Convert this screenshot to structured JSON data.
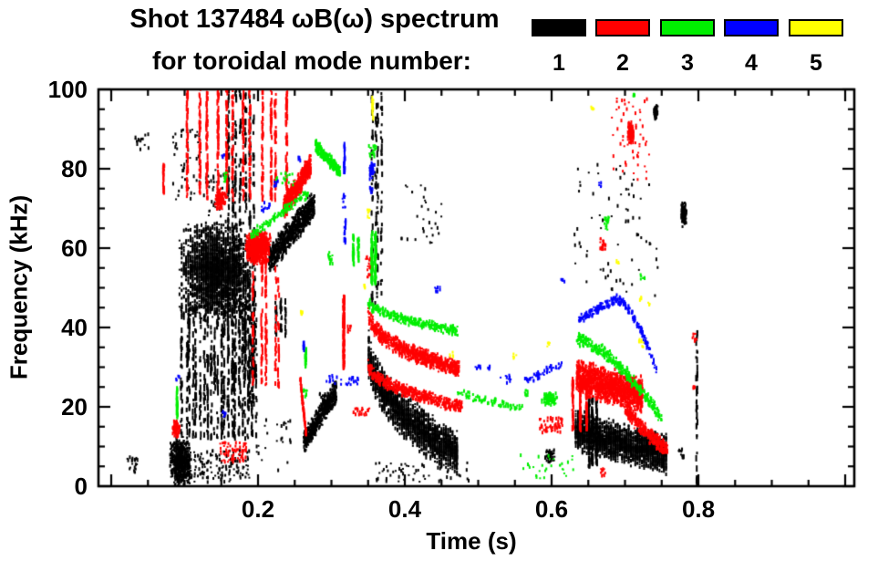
{
  "chart_data": {
    "type": "scatter",
    "title_line1": "Shot 137484 ωB(ω) spectrum",
    "title_line2": "for toroidal mode number:",
    "xlabel": "Time (s)",
    "ylabel": "Frequency (kHz)",
    "x_range": [
      -0.0174,
      1.0124
    ],
    "y_range": [
      0,
      100
    ],
    "x_major_ticks": [
      0,
      0.2,
      0.4,
      0.6,
      0.8,
      1.0
    ],
    "x_labeled_ticks": [
      {
        "t": 0.2,
        "label": "0.2"
      },
      {
        "t": 0.4,
        "label": "0.4"
      },
      {
        "t": 0.6,
        "label": "0.6"
      },
      {
        "t": 0.8,
        "label": "0.8"
      }
    ],
    "x_minor_step": 0.05,
    "y_major_ticks": [
      0,
      20,
      40,
      60,
      80,
      100
    ],
    "y_tick_labels": [
      "0",
      "20",
      "40",
      "60",
      "80",
      "100"
    ],
    "y_minor_step": 5,
    "legend": {
      "entries": [
        {
          "label": "1",
          "color": "#000000"
        },
        {
          "label": "2",
          "color": "#ff0000"
        },
        {
          "label": "3",
          "color": "#00ee00"
        },
        {
          "label": "4",
          "color": "#0000ff"
        },
        {
          "label": "5",
          "color": "#ffff00"
        }
      ]
    },
    "clusters": [
      {
        "m": 1,
        "s": "blob",
        "t": 0.142,
        "f": 54,
        "rt": 0.052,
        "rf": 13,
        "n": 2400,
        "q": 0.003
      },
      {
        "m": 1,
        "s": "vs",
        "t0": 0.095,
        "t1": 0.2,
        "f0": 12,
        "f1": 46,
        "k": 22,
        "n": 700
      },
      {
        "m": 1,
        "s": "vs",
        "t0": 0.155,
        "t1": 0.196,
        "f0": 20,
        "f1": 100,
        "k": 7,
        "n": 420
      },
      {
        "m": 1,
        "s": "sc",
        "t0": 0.083,
        "t1": 0.122,
        "f0": 70,
        "f1": 90,
        "n": 50
      },
      {
        "m": 1,
        "s": "sc",
        "t0": 0.125,
        "t1": 0.155,
        "f0": 68,
        "f1": 80,
        "n": 30
      },
      {
        "m": 1,
        "s": "sc",
        "t0": 0.033,
        "t1": 0.052,
        "f0": 84,
        "f1": 89,
        "n": 14
      },
      {
        "m": 1,
        "s": "band",
        "t0": 0.215,
        "t1": 0.277,
        "f0": 57,
        "f1": 71,
        "w": 4,
        "n": 750
      },
      {
        "m": 1,
        "s": "band",
        "t0": 0.262,
        "t1": 0.307,
        "f0": 11,
        "f1": 24,
        "w": 3.2,
        "n": 480
      },
      {
        "m": 1,
        "s": "blob",
        "t": 0.095,
        "f": 6,
        "rt": 0.016,
        "rf": 6.5,
        "n": 550
      },
      {
        "m": 1,
        "s": "sc",
        "t0": 0.112,
        "t1": 0.19,
        "f0": 1,
        "f1": 9,
        "n": 130
      },
      {
        "m": 1,
        "s": "sc",
        "t0": 0.02,
        "t1": 0.036,
        "f0": 3,
        "f1": 7.5,
        "n": 22
      },
      {
        "m": 1,
        "s": "sc",
        "t0": 0.195,
        "t1": 0.245,
        "f0": 3,
        "f1": 17,
        "n": 25
      },
      {
        "m": 1,
        "s": "vs",
        "t0": 0.178,
        "t1": 0.196,
        "f0": 25,
        "f1": 55,
        "k": 3,
        "n": 80
      },
      {
        "m": 1,
        "s": "vs",
        "t0": 0.222,
        "t1": 0.238,
        "f0": 38,
        "f1": 47,
        "k": 3,
        "n": 40
      },
      {
        "m": 1,
        "s": "sc",
        "t0": 0.284,
        "t1": 0.292,
        "f0": 21,
        "f1": 23.5,
        "n": 12
      },
      {
        "m": 1,
        "s": "band",
        "t0": 0.35,
        "t1": 0.472,
        "f0": 37,
        "f1": 8,
        "w": 6,
        "p": 0.45,
        "n": 2000,
        "q": 0.003
      },
      {
        "m": 1,
        "s": "sc",
        "t0": 0.36,
        "t1": 0.49,
        "f0": 1,
        "f1": 6,
        "n": 60
      },
      {
        "m": 1,
        "s": "vs",
        "t0": 0.352,
        "t1": 0.372,
        "f0": 46,
        "f1": 100,
        "k": 4,
        "n": 130
      },
      {
        "m": 1,
        "s": "sc",
        "t0": 0.395,
        "t1": 0.45,
        "f0": 60,
        "f1": 76,
        "n": 30
      },
      {
        "m": 1,
        "s": "blob",
        "t": 0.597,
        "f": 7.5,
        "rt": 0.008,
        "rf": 1.8,
        "n": 45
      },
      {
        "m": 1,
        "s": "band",
        "t0": 0.632,
        "t1": 0.756,
        "f0": 14,
        "f1": 8,
        "w": 5.5,
        "n": 2100,
        "q": 0.003
      },
      {
        "m": 1,
        "s": "vs",
        "t0": 0.648,
        "t1": 0.662,
        "f0": 5,
        "f1": 22,
        "k": 3,
        "n": 160
      },
      {
        "m": 1,
        "s": "sc",
        "t0": 0.63,
        "t1": 0.75,
        "f0": 48,
        "f1": 81,
        "n": 70
      },
      {
        "m": 1,
        "s": "blob",
        "t": 0.742,
        "f": 94,
        "rt": 0.003,
        "rf": 2.2,
        "n": 55
      },
      {
        "m": 1,
        "s": "blob",
        "t": 0.78,
        "f": 68.5,
        "rt": 0.004,
        "rf": 3.5,
        "n": 90
      },
      {
        "m": 1,
        "s": "sc",
        "t0": 0.773,
        "t1": 0.78,
        "f0": 7,
        "f1": 9.5,
        "n": 12
      },
      {
        "m": 1,
        "s": "vs",
        "t0": 0.795,
        "t1": 0.802,
        "f0": 1,
        "f1": 40,
        "k": 1,
        "n": 40
      },
      {
        "m": 2,
        "s": "vs",
        "t0": 0.1,
        "t1": 0.245,
        "f0": 72,
        "f1": 100,
        "k": 12,
        "n": 650
      },
      {
        "m": 2,
        "s": "vs",
        "t0": 0.07,
        "t1": 0.075,
        "f0": 74,
        "f1": 81,
        "k": 1,
        "n": 20
      },
      {
        "m": 2,
        "s": "blob",
        "t": 0.148,
        "f": 72,
        "rt": 0.008,
        "rf": 3,
        "n": 120
      },
      {
        "m": 2,
        "s": "blob",
        "t": 0.2,
        "f": 60,
        "rt": 0.018,
        "rf": 4.5,
        "n": 650
      },
      {
        "m": 2,
        "s": "band",
        "t0": 0.235,
        "t1": 0.272,
        "f0": 70,
        "f1": 81,
        "w": 3.2,
        "n": 600
      },
      {
        "m": 2,
        "s": "vs",
        "t0": 0.19,
        "t1": 0.215,
        "f0": 25,
        "f1": 58,
        "k": 3,
        "n": 130
      },
      {
        "m": 2,
        "s": "vs",
        "t0": 0.222,
        "t1": 0.232,
        "f0": 25,
        "f1": 55,
        "k": 2,
        "n": 50
      },
      {
        "m": 2,
        "s": "band",
        "t0": 0.2575,
        "t1": 0.2655,
        "f0": 27,
        "f1": 13,
        "w": 1.5,
        "n": 130
      },
      {
        "m": 2,
        "s": "blob",
        "t": 0.0885,
        "f": 14.5,
        "rt": 0.0055,
        "rf": 2.2,
        "n": 90
      },
      {
        "m": 2,
        "s": "sc",
        "t0": 0.148,
        "t1": 0.185,
        "f0": 6,
        "f1": 11,
        "n": 70
      },
      {
        "m": 2,
        "s": "vs",
        "t0": 0.3135,
        "t1": 0.3195,
        "f0": 30,
        "f1": 48,
        "k": 1,
        "n": 130
      },
      {
        "m": 2,
        "s": "sc",
        "t0": 0.322,
        "t1": 0.327,
        "f0": 38.5,
        "f1": 40.5,
        "n": 10
      },
      {
        "m": 2,
        "s": "sc",
        "t0": 0.347,
        "t1": 0.356,
        "f0": 52,
        "f1": 58,
        "n": 28
      },
      {
        "m": 2,
        "s": "band",
        "t0": 0.35,
        "t1": 0.474,
        "f0": 45,
        "f1": 29.5,
        "w": 2.4,
        "p": 0.42,
        "n": 800
      },
      {
        "m": 2,
        "s": "band",
        "t0": 0.35,
        "t1": 0.478,
        "f0": 31,
        "f1": 20,
        "w": 1.8,
        "p": 0.5,
        "n": 500
      },
      {
        "m": 2,
        "s": "sc",
        "t0": 0.33,
        "t1": 0.352,
        "f0": 17.8,
        "f1": 19.8,
        "n": 22
      },
      {
        "m": 2,
        "s": "sc",
        "t0": 0.583,
        "t1": 0.615,
        "f0": 13.5,
        "f1": 17.5,
        "n": 60
      },
      {
        "m": 2,
        "s": "band",
        "t0": 0.634,
        "t1": 0.724,
        "f0": 27.5,
        "f1": 23,
        "w": 4.8,
        "n": 1500
      },
      {
        "m": 2,
        "s": "band",
        "t0": 0.7,
        "t1": 0.758,
        "f0": 20,
        "f1": 9,
        "w": 2.2,
        "p": 0.8,
        "n": 320
      },
      {
        "m": 2,
        "s": "vs",
        "t0": 0.625,
        "t1": 0.649,
        "f0": 14,
        "f1": 27,
        "k": 3,
        "n": 130
      },
      {
        "m": 2,
        "s": "blob",
        "t": 0.708,
        "f": 89,
        "rt": 0.005,
        "rf": 2.8,
        "n": 130
      },
      {
        "m": 2,
        "s": "sc",
        "t0": 0.682,
        "t1": 0.733,
        "f0": 76,
        "f1": 98,
        "n": 55
      },
      {
        "m": 2,
        "s": "sc",
        "t0": 0.666,
        "t1": 0.674,
        "f0": 59.5,
        "f1": 62.5,
        "n": 22
      },
      {
        "m": 2,
        "s": "sc",
        "t0": 0.667,
        "t1": 0.673,
        "f0": 2.5,
        "f1": 4.5,
        "n": 12
      },
      {
        "m": 2,
        "s": "sc",
        "t0": 0.792,
        "t1": 0.798,
        "f0": 36.5,
        "f1": 38.5,
        "n": 9
      },
      {
        "m": 2,
        "s": "sc",
        "t0": 0.793,
        "t1": 0.797,
        "f0": 24.5,
        "f1": 25.5,
        "n": 5
      },
      {
        "m": 3,
        "s": "band",
        "t0": 0.278,
        "t1": 0.312,
        "f0": 86,
        "f1": 79,
        "w": 1.8,
        "n": 260
      },
      {
        "m": 3,
        "s": "band",
        "t0": 0.19,
        "t1": 0.268,
        "f0": 63,
        "f1": 74,
        "w": 1.4,
        "n": 130
      },
      {
        "m": 3,
        "s": "sc",
        "t0": 0.222,
        "t1": 0.252,
        "f0": 75.5,
        "f1": 79,
        "n": 18
      },
      {
        "m": 3,
        "s": "sc",
        "t0": 0.153,
        "t1": 0.157,
        "f0": 76.5,
        "f1": 79,
        "n": 8
      },
      {
        "m": 3,
        "s": "vs",
        "t0": 0.086,
        "t1": 0.091,
        "f0": 17,
        "f1": 25,
        "k": 1,
        "n": 30
      },
      {
        "m": 3,
        "s": "sc",
        "t0": 0.295,
        "t1": 0.302,
        "f0": 56,
        "f1": 59,
        "n": 15
      },
      {
        "m": 3,
        "s": "vs",
        "t0": 0.329,
        "t1": 0.339,
        "f0": 56,
        "f1": 63,
        "k": 2,
        "n": 45
      },
      {
        "m": 3,
        "s": "vs",
        "t0": 0.352,
        "t1": 0.362,
        "f0": 51,
        "f1": 64,
        "k": 2,
        "n": 110
      },
      {
        "m": 3,
        "s": "sc",
        "t0": 0.351,
        "t1": 0.361,
        "f0": 83,
        "f1": 86,
        "n": 20
      },
      {
        "m": 3,
        "s": "vs",
        "t0": 0.262,
        "t1": 0.266,
        "f0": 30,
        "f1": 34.5,
        "k": 1,
        "n": 20
      },
      {
        "m": 3,
        "s": "sc",
        "t0": 0.262,
        "t1": 0.267,
        "f0": 22.5,
        "f1": 24.5,
        "n": 8
      },
      {
        "m": 3,
        "s": "band",
        "t0": 0.35,
        "t1": 0.472,
        "f0": 46.5,
        "f1": 39,
        "w": 1.4,
        "p": 0.6,
        "n": 300
      },
      {
        "m": 3,
        "s": "band",
        "t0": 0.472,
        "t1": 0.56,
        "f0": 23.5,
        "f1": 19.5,
        "w": 1.2,
        "n": 80
      },
      {
        "m": 3,
        "s": "blob",
        "t": 0.597,
        "f": 22,
        "rt": 0.011,
        "rf": 1.8,
        "n": 90
      },
      {
        "m": 3,
        "s": "sc",
        "t0": 0.555,
        "t1": 0.632,
        "f0": 1.5,
        "f1": 8,
        "n": 30
      },
      {
        "m": 3,
        "s": "sc",
        "t0": 0.562,
        "t1": 0.568,
        "f0": 22.8,
        "f1": 24.2,
        "n": 8
      },
      {
        "m": 3,
        "s": "band",
        "t0": 0.633,
        "t1": 0.75,
        "f0": 37,
        "f1": 17,
        "w": 1.8,
        "p": 1.6,
        "n": 330
      },
      {
        "m": 3,
        "s": "sc",
        "t0": 0.672,
        "t1": 0.679,
        "f0": 64.5,
        "f1": 68,
        "n": 18
      },
      {
        "m": 3,
        "s": "sc",
        "t0": 0.721,
        "t1": 0.727,
        "f0": 52,
        "f1": 53.5,
        "n": 8
      },
      {
        "m": 3,
        "s": "sc",
        "t0": 0.71,
        "t1": 0.716,
        "f0": 98,
        "f1": 100,
        "n": 8
      },
      {
        "m": 4,
        "s": "sc",
        "t0": 0.088,
        "t1": 0.093,
        "f0": 26.5,
        "f1": 28,
        "n": 6
      },
      {
        "m": 4,
        "s": "sc",
        "t0": 0.151,
        "t1": 0.157,
        "f0": 17.5,
        "f1": 19,
        "n": 7
      },
      {
        "m": 4,
        "s": "sc",
        "t0": 0.15,
        "t1": 0.155,
        "f0": 82.8,
        "f1": 84,
        "n": 6
      },
      {
        "m": 4,
        "s": "sc",
        "t0": 0.222,
        "t1": 0.228,
        "f0": 75.5,
        "f1": 77,
        "n": 8
      },
      {
        "m": 4,
        "s": "sc",
        "t0": 0.205,
        "t1": 0.216,
        "f0": 69,
        "f1": 71.5,
        "n": 12
      },
      {
        "m": 4,
        "s": "sc",
        "t0": 0.254,
        "t1": 0.258,
        "f0": 82,
        "f1": 83.4,
        "n": 6
      },
      {
        "m": 4,
        "s": "vs",
        "t0": 0.26,
        "t1": 0.264,
        "f0": 34,
        "f1": 36,
        "k": 1,
        "n": 8
      },
      {
        "m": 4,
        "s": "sc",
        "t0": 0.297,
        "t1": 0.303,
        "f0": 26.5,
        "f1": 28,
        "n": 6
      },
      {
        "m": 4,
        "s": "vs",
        "t0": 0.313,
        "t1": 0.319,
        "f0": 79,
        "f1": 86,
        "k": 1,
        "n": 20
      },
      {
        "m": 4,
        "s": "sc",
        "t0": 0.315,
        "t1": 0.319,
        "f0": 70,
        "f1": 74,
        "n": 10
      },
      {
        "m": 4,
        "s": "vs",
        "t0": 0.315,
        "t1": 0.32,
        "f0": 60,
        "f1": 67,
        "k": 1,
        "n": 14
      },
      {
        "m": 4,
        "s": "blob",
        "t": 0.355,
        "f": 79.5,
        "rt": 0.004,
        "rf": 2.3,
        "n": 40
      },
      {
        "m": 4,
        "s": "sc",
        "t0": 0.352,
        "t1": 0.356,
        "f0": 73.5,
        "f1": 75.5,
        "n": 8
      },
      {
        "m": 4,
        "s": "sc",
        "t0": 0.29,
        "t1": 0.337,
        "f0": 25.5,
        "f1": 27.5,
        "n": 26
      },
      {
        "m": 4,
        "s": "sc",
        "t0": 0.441,
        "t1": 0.448,
        "f0": 49,
        "f1": 50.5,
        "n": 8
      },
      {
        "m": 4,
        "s": "sc",
        "t0": 0.496,
        "t1": 0.503,
        "f0": 29.5,
        "f1": 31,
        "n": 9
      },
      {
        "m": 4,
        "s": "sc",
        "t0": 0.511,
        "t1": 0.516,
        "f0": 29.5,
        "f1": 30.5,
        "n": 5
      },
      {
        "m": 4,
        "s": "sc",
        "t0": 0.528,
        "t1": 0.546,
        "f0": 26,
        "f1": 28,
        "n": 9
      },
      {
        "m": 4,
        "s": "band",
        "t0": 0.562,
        "t1": 0.614,
        "f0": 26.5,
        "f1": 30.5,
        "w": 1.2,
        "n": 55
      },
      {
        "m": 4,
        "s": "band",
        "t0": 0.637,
        "t1": 0.688,
        "f0": 42,
        "f1": 47,
        "w": 1.3,
        "n": 110
      },
      {
        "m": 4,
        "s": "band",
        "t0": 0.688,
        "t1": 0.744,
        "f0": 47,
        "f1": 28.5,
        "w": 1.3,
        "p": 1.7,
        "n": 120
      },
      {
        "m": 4,
        "s": "sc",
        "t0": 0.612,
        "t1": 0.618,
        "f0": 51,
        "f1": 52.2,
        "n": 5
      },
      {
        "m": 4,
        "s": "sc",
        "t0": 0.663,
        "t1": 0.669,
        "f0": 75.5,
        "f1": 76.5,
        "n": 5
      },
      {
        "m": 5,
        "s": "sc",
        "t0": 0.258,
        "t1": 0.262,
        "f0": 43,
        "f1": 44.5,
        "n": 5
      },
      {
        "m": 5,
        "s": "vs",
        "t0": 0.352,
        "t1": 0.357,
        "f0": 92.5,
        "f1": 98,
        "k": 1,
        "n": 14
      },
      {
        "m": 5,
        "s": "sc",
        "t0": 0.349,
        "t1": 0.353,
        "f0": 67.5,
        "f1": 70,
        "n": 7
      },
      {
        "m": 5,
        "s": "sc",
        "t0": 0.343,
        "t1": 0.347,
        "f0": 50,
        "f1": 51.5,
        "n": 5
      },
      {
        "m": 5,
        "s": "sc",
        "t0": 0.461,
        "t1": 0.466,
        "f0": 32.5,
        "f1": 34,
        "n": 5
      },
      {
        "m": 5,
        "s": "sc",
        "t0": 0.547,
        "t1": 0.552,
        "f0": 32,
        "f1": 33.5,
        "n": 5
      },
      {
        "m": 5,
        "s": "sc",
        "t0": 0.593,
        "t1": 0.598,
        "f0": 35,
        "f1": 36.5,
        "n": 5
      },
      {
        "m": 5,
        "s": "sc",
        "t0": 0.653,
        "t1": 0.658,
        "f0": 94.5,
        "f1": 96,
        "n": 5
      },
      {
        "m": 5,
        "s": "sc",
        "t0": 0.688,
        "t1": 0.692,
        "f0": 56,
        "f1": 57,
        "n": 4
      },
      {
        "m": 5,
        "s": "sc",
        "t0": 0.719,
        "t1": 0.727,
        "f0": 35,
        "f1": 37,
        "n": 8
      },
      {
        "m": 5,
        "s": "sc",
        "t0": 0.72,
        "t1": 0.724,
        "f0": 46.8,
        "f1": 47.6,
        "n": 4
      },
      {
        "m": 5,
        "s": "sc",
        "t0": 0.731,
        "t1": 0.735,
        "f0": 45.5,
        "f1": 46.5,
        "n": 4
      }
    ]
  }
}
